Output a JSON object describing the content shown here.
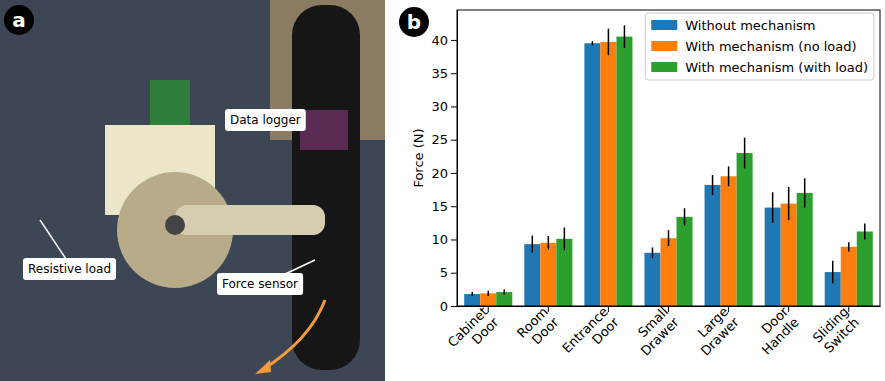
{
  "panel_labels": [
    "a",
    "b"
  ],
  "photo_annotations": [
    "Data logger",
    "Force sensor",
    "Resistive load"
  ],
  "chart_data": {
    "type": "bar",
    "y_label": "Force (N)",
    "categories": [
      "Cabinet Door",
      "Room Door",
      "Entrance Door",
      "Small Drawer",
      "Large Drawer",
      "Door Handle",
      "Sliding Switch"
    ],
    "series": [
      {
        "name": "Without mechanism",
        "color": "#1f77b4",
        "values": [
          1.8,
          9.3,
          39.5,
          8.0,
          18.2,
          14.8,
          5.1
        ],
        "errors": [
          0.3,
          1.3,
          0.3,
          0.8,
          1.5,
          2.3,
          1.7
        ]
      },
      {
        "name": "With mechanism (no load)",
        "color": "#ff7f0e",
        "values": [
          1.9,
          9.5,
          39.7,
          10.2,
          19.5,
          15.4,
          8.9
        ],
        "errors": [
          0.4,
          1.0,
          2.0,
          1.2,
          1.5,
          2.5,
          0.7
        ]
      },
      {
        "name": "With mechanism (with load)",
        "color": "#2ca02c",
        "values": [
          2.1,
          10.1,
          40.5,
          13.4,
          23.0,
          17.0,
          11.2
        ],
        "errors": [
          0.4,
          1.7,
          1.7,
          1.3,
          2.3,
          2.2,
          1.2
        ]
      }
    ],
    "ylim": [
      0,
      44.5
    ],
    "yticks": [
      0,
      5,
      10,
      15,
      20,
      25,
      30,
      35,
      40
    ],
    "legend": "upper right",
    "grid": false
  }
}
